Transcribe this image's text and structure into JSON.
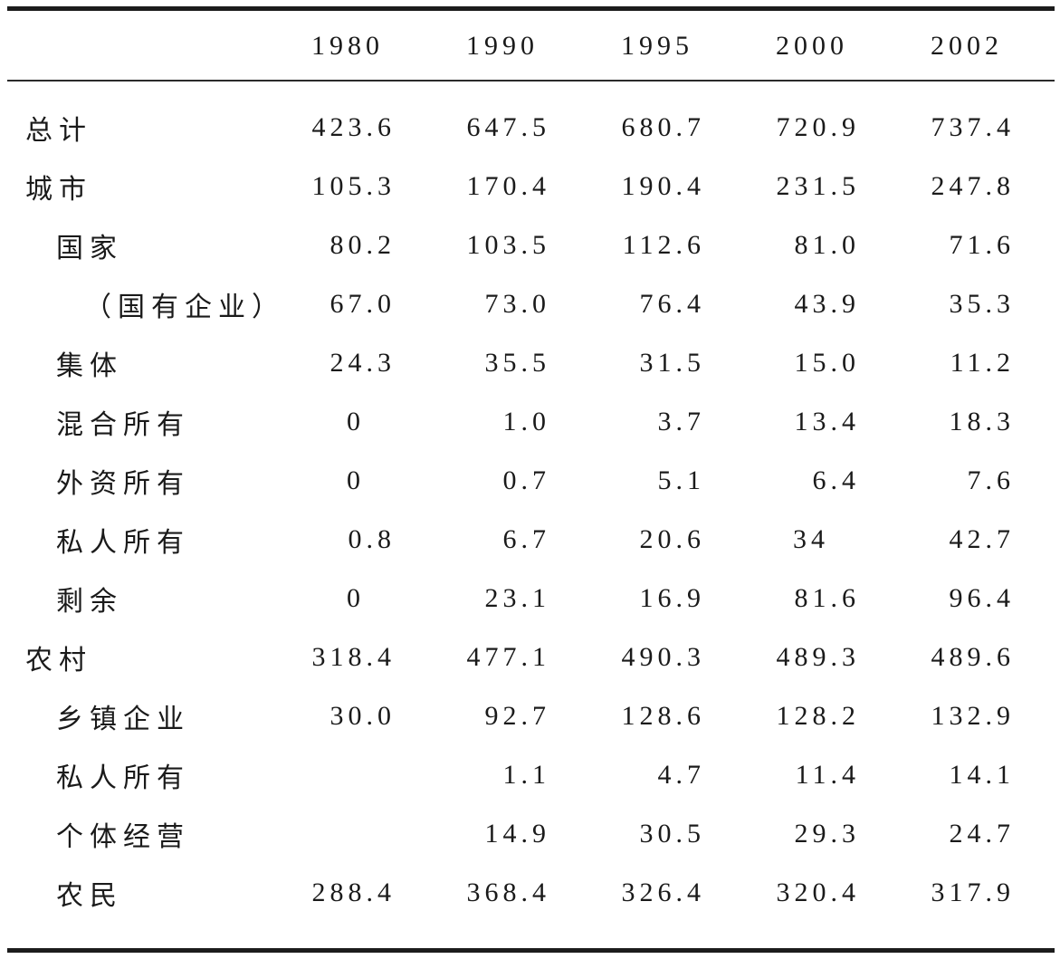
{
  "chart_data": {
    "type": "table",
    "columns": [
      "1980",
      "1990",
      "1995",
      "2000",
      "2002"
    ],
    "rows": [
      {
        "label": "总计",
        "indent": 0,
        "values": [
          "423.6",
          "647.5",
          "680.7",
          "720.9",
          "737.4"
        ]
      },
      {
        "label": "城市",
        "indent": 0,
        "values": [
          "105.3",
          "170.4",
          "190.4",
          "231.5",
          "247.8"
        ]
      },
      {
        "label": "国家",
        "indent": 1,
        "values": [
          "80.2",
          "103.5",
          "112.6",
          "81.0",
          "71.6"
        ]
      },
      {
        "label": "（国有企业）",
        "indent": 2,
        "values": [
          "67.0",
          "73.0",
          "76.4",
          "43.9",
          "35.3"
        ]
      },
      {
        "label": "集体",
        "indent": 1,
        "values": [
          "24.3",
          "35.5",
          "31.5",
          "15.0",
          "11.2"
        ]
      },
      {
        "label": "混合所有",
        "indent": 1,
        "values": [
          "0",
          "1.0",
          "3.7",
          "13.4",
          "18.3"
        ]
      },
      {
        "label": "外资所有",
        "indent": 1,
        "values": [
          "0",
          "0.7",
          "5.1",
          "6.4",
          "7.6"
        ]
      },
      {
        "label": "私人所有",
        "indent": 1,
        "values": [
          "0.8",
          "6.7",
          "20.6",
          "34",
          "42.7"
        ]
      },
      {
        "label": "剩余",
        "indent": 1,
        "values": [
          "0",
          "23.1",
          "16.9",
          "81.6",
          "96.4"
        ]
      },
      {
        "label": "农村",
        "indent": 0,
        "values": [
          "318.4",
          "477.1",
          "490.3",
          "489.3",
          "489.6"
        ]
      },
      {
        "label": "乡镇企业",
        "indent": 1,
        "values": [
          "30.0",
          "92.7",
          "128.6",
          "128.2",
          "132.9"
        ]
      },
      {
        "label": "私人所有",
        "indent": 1,
        "values": [
          "",
          "1.1",
          "4.7",
          "11.4",
          "14.1"
        ]
      },
      {
        "label": "个体经营",
        "indent": 1,
        "values": [
          "",
          "14.9",
          "30.5",
          "29.3",
          "24.7"
        ]
      },
      {
        "label": "农民",
        "indent": 1,
        "values": [
          "288.4",
          "368.4",
          "326.4",
          "320.4",
          "317.9"
        ]
      }
    ]
  }
}
